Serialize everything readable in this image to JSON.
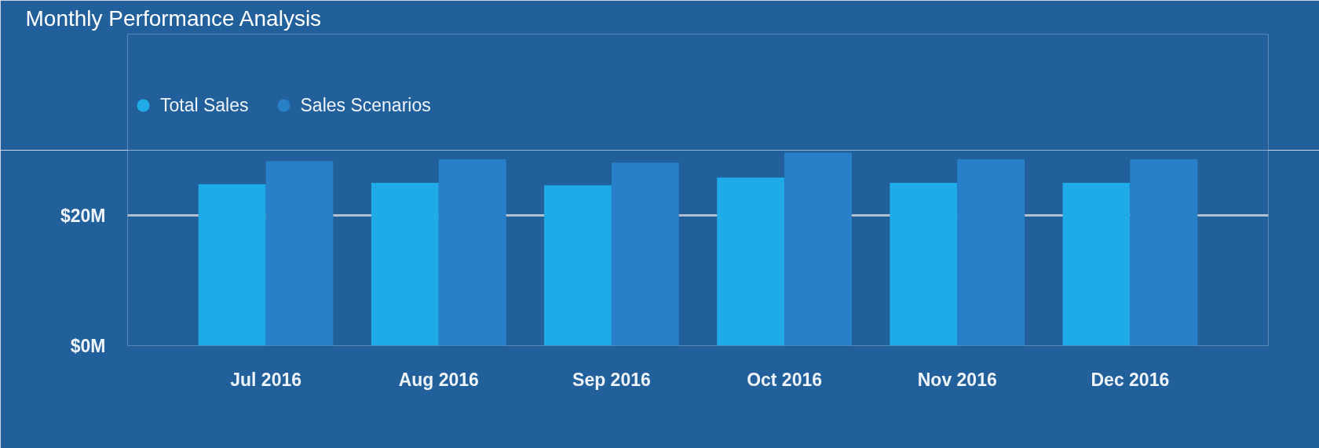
{
  "chart_data": {
    "type": "bar",
    "title": "Monthly Performance Analysis",
    "categories": [
      "Jul 2016",
      "Aug 2016",
      "Sep 2016",
      "Oct 2016",
      "Nov 2016",
      "Dec 2016"
    ],
    "series": [
      {
        "name": "Total Sales",
        "color": "#1fabe8",
        "values": [
          24.8,
          25.0,
          24.6,
          25.8,
          25.0,
          25.0
        ]
      },
      {
        "name": "Sales Scenarios",
        "color": "#2880c8",
        "values": [
          28.3,
          28.6,
          28.1,
          29.6,
          28.6,
          28.6
        ]
      }
    ],
    "ylim": [
      0,
      30
    ],
    "yticks": [
      {
        "value": 0,
        "label": "$0M"
      },
      {
        "value": 20,
        "label": "$20M"
      }
    ],
    "grid": "y",
    "legend": "top left"
  }
}
